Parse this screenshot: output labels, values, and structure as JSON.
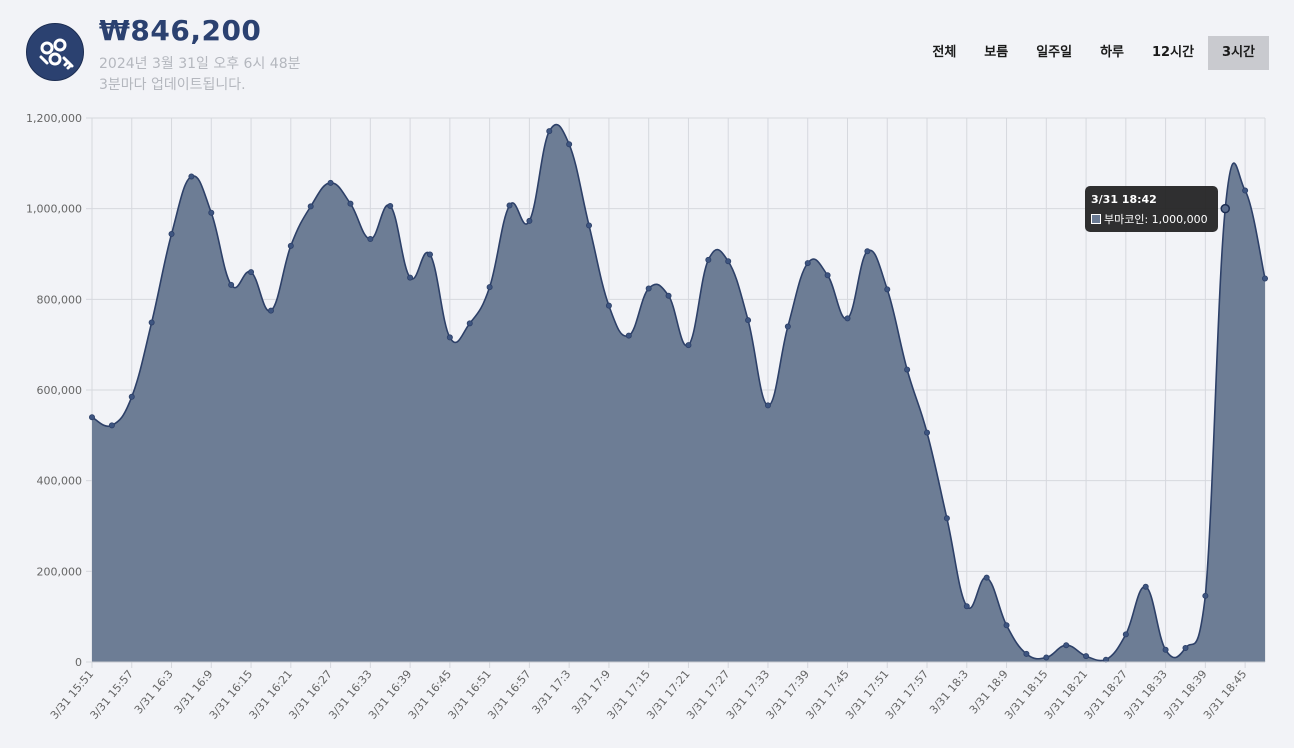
{
  "header": {
    "logo_icon": "bumacoin-logo-icon",
    "price": "₩846,200",
    "timestamp": "2024년 3월 31일 오후 6시 48분",
    "update_note": "3분마다 업데이트됩니다."
  },
  "tabs": [
    {
      "label": "전체",
      "active": false
    },
    {
      "label": "보름",
      "active": false
    },
    {
      "label": "일주일",
      "active": false
    },
    {
      "label": "하루",
      "active": false
    },
    {
      "label": "12시간",
      "active": false
    },
    {
      "label": "3시간",
      "active": true
    }
  ],
  "colors": {
    "accent": "#2b4170",
    "line": "#2d4068",
    "fill": "#6a7a93"
  },
  "tooltip": {
    "title": "3/31 18:42",
    "label": "부마코인: 1,000,000"
  },
  "chart_data": {
    "type": "area",
    "series": [
      {
        "name": "부마코인",
        "values": [
          540000,
          522000,
          585000,
          749000,
          944000,
          1071000,
          991000,
          832000,
          860000,
          775000,
          918000,
          1005000,
          1057000,
          1011000,
          933000,
          1006000,
          848000,
          899000,
          716000,
          747000,
          827000,
          1007000,
          973000,
          1171000,
          1142000,
          963000,
          786000,
          720000,
          824000,
          808000,
          699000,
          887000,
          884000,
          754000,
          566000,
          740000,
          880000,
          853000,
          758000,
          906000,
          822000,
          645000,
          506000,
          317000,
          123000,
          186000,
          81000,
          18000,
          10000,
          37000,
          13000,
          5000,
          61000,
          166000,
          27000,
          31000,
          146000,
          1000000,
          1040000,
          846000
        ]
      }
    ],
    "xlabels": [
      "3/31 15:51",
      "3/31 15:57",
      "3/31 16:3",
      "3/31 16:9",
      "3/31 16:15",
      "3/31 16:21",
      "3/31 16:27",
      "3/31 16:33",
      "3/31 16:39",
      "3/31 16:45",
      "3/31 16:51",
      "3/31 16:57",
      "3/31 17:3",
      "3/31 17:9",
      "3/31 17:15",
      "3/31 17:21",
      "3/31 17:27",
      "3/31 17:33",
      "3/31 17:39",
      "3/31 17:45",
      "3/31 17:51",
      "3/31 17:57",
      "3/31 18:3",
      "3/31 18:9",
      "3/31 18:15",
      "3/31 18:21",
      "3/31 18:27",
      "3/31 18:33",
      "3/31 18:39",
      "3/31 18:45"
    ],
    "yticks": [
      "0",
      "200,000",
      "400,000",
      "600,000",
      "800,000",
      "1,000,000",
      "1,200,000"
    ],
    "ylim": [
      0,
      1200000
    ],
    "highlight_index": 57,
    "grid": true,
    "legend": "none"
  }
}
